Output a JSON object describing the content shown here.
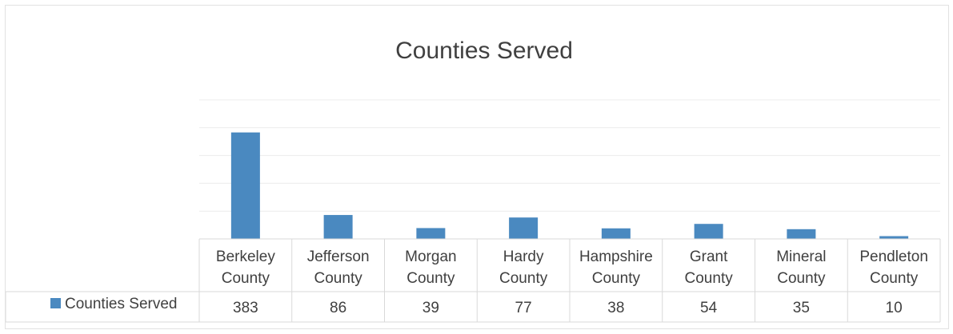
{
  "chart_data": {
    "type": "bar",
    "title": "Counties Served",
    "categories": [
      [
        "Berkeley",
        "County"
      ],
      [
        "Jefferson",
        "County"
      ],
      [
        "Morgan",
        "County"
      ],
      [
        "Hardy",
        "County"
      ],
      [
        "Hampshire",
        "County"
      ],
      [
        "Grant",
        "County"
      ],
      [
        "Mineral",
        "County"
      ],
      [
        "Pendleton",
        "County"
      ]
    ],
    "series": [
      {
        "name": "Counties Served",
        "values": [
          383,
          86,
          39,
          77,
          38,
          54,
          35,
          10
        ],
        "color": "#4a89c0"
      }
    ],
    "ylim": [
      0,
      500
    ],
    "grid": true,
    "data_table": true,
    "legend_placement": "data-table-left"
  }
}
